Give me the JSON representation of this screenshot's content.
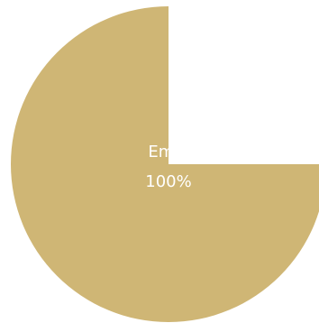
{
  "chart_data": {
    "type": "pie",
    "slices": [
      {
        "label": "Empl",
        "percent_label": "100%",
        "value": 75,
        "color": "#cfb675"
      }
    ],
    "missing_fraction": 0.25,
    "background": "#ffffff"
  }
}
